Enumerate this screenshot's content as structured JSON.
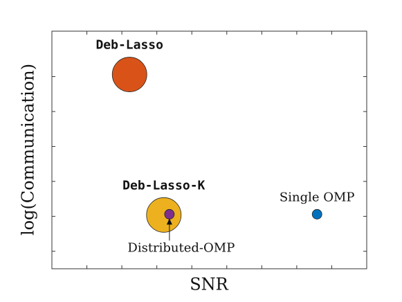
{
  "chart_data": {
    "type": "scatter",
    "xlabel": "SNR",
    "ylabel": "log(Communication)",
    "xlim": [
      0,
      9
    ],
    "xticks": [
      1,
      2,
      3,
      4,
      5,
      6,
      7,
      8
    ],
    "ylim": [
      0,
      6.8
    ],
    "yticks": [
      0.5,
      1.5,
      2.5,
      3.5,
      4.5,
      5.5
    ],
    "series": [
      {
        "name": "Deb-Lasso",
        "color": "#d95319",
        "x": [
          2.22
        ],
        "y": [
          5.56
        ],
        "size": [
          25
        ],
        "font": "mono",
        "label_pos": "above"
      },
      {
        "name": "Deb-Lasso-K",
        "color": "#edb120",
        "x": [
          3.2
        ],
        "y": [
          1.54
        ],
        "size": [
          25
        ],
        "font": "mono",
        "label_pos": "above"
      },
      {
        "name": "Distributed-OMP",
        "color": "#7e2f8e",
        "x": [
          3.36
        ],
        "y": [
          1.56
        ],
        "size": [
          7
        ],
        "font": "serif",
        "label_pos": "below-arrow"
      },
      {
        "name": "Single OMP",
        "color": "#0072bd",
        "x": [
          7.58
        ],
        "y": [
          1.56
        ],
        "size": [
          7
        ],
        "font": "serif",
        "label_pos": "above"
      }
    ]
  }
}
